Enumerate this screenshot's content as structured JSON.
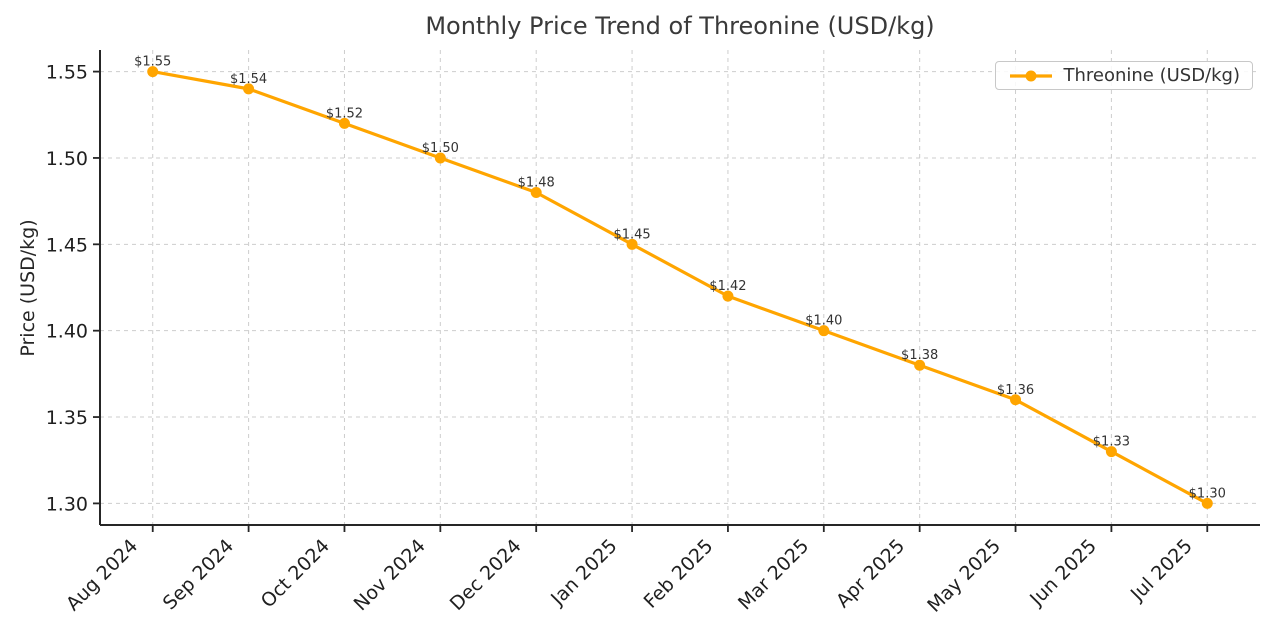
{
  "chart_data": {
    "type": "line",
    "title": "Monthly Price Trend of Threonine (USD/kg)",
    "xlabel": "",
    "ylabel": "Price (USD/kg)",
    "categories": [
      "Aug 2024",
      "Sep 2024",
      "Oct 2024",
      "Nov 2024",
      "Dec 2024",
      "Jan 2025",
      "Feb 2025",
      "Mar 2025",
      "Apr 2025",
      "May 2025",
      "Jun 2025",
      "Jul 2025"
    ],
    "series": [
      {
        "name": "Threonine (USD/kg)",
        "values": [
          1.55,
          1.54,
          1.52,
          1.5,
          1.48,
          1.45,
          1.42,
          1.4,
          1.38,
          1.36,
          1.33,
          1.3
        ],
        "point_labels": [
          "$1.55",
          "$1.54",
          "$1.52",
          "$1.50",
          "$1.48",
          "$1.45",
          "$1.42",
          "$1.40",
          "$1.38",
          "$1.36",
          "$1.33",
          "$1.30"
        ],
        "color": "#FFA500"
      }
    ],
    "y_ticks": [
      1.3,
      1.35,
      1.4,
      1.45,
      1.5,
      1.55
    ],
    "y_tick_labels": [
      "1.30",
      "1.35",
      "1.40",
      "1.45",
      "1.50",
      "1.55"
    ],
    "ylim": [
      1.2875,
      1.5625
    ],
    "grid": true,
    "grid_style": "dashed",
    "legend": {
      "position": "upper-right",
      "label": "Threonine (USD/kg)"
    },
    "colors": {
      "line": "#FFA500",
      "marker": "#FFA500",
      "title": "#3a3a3a",
      "axis_label": "#262626",
      "tick_label": "#1f1f1f",
      "point_label": "#333333",
      "grid": "#cdcdcd",
      "spine": "#262626",
      "legend_border": "#c8c8c8",
      "legend_text": "#333333",
      "background": "#ffffff"
    }
  }
}
